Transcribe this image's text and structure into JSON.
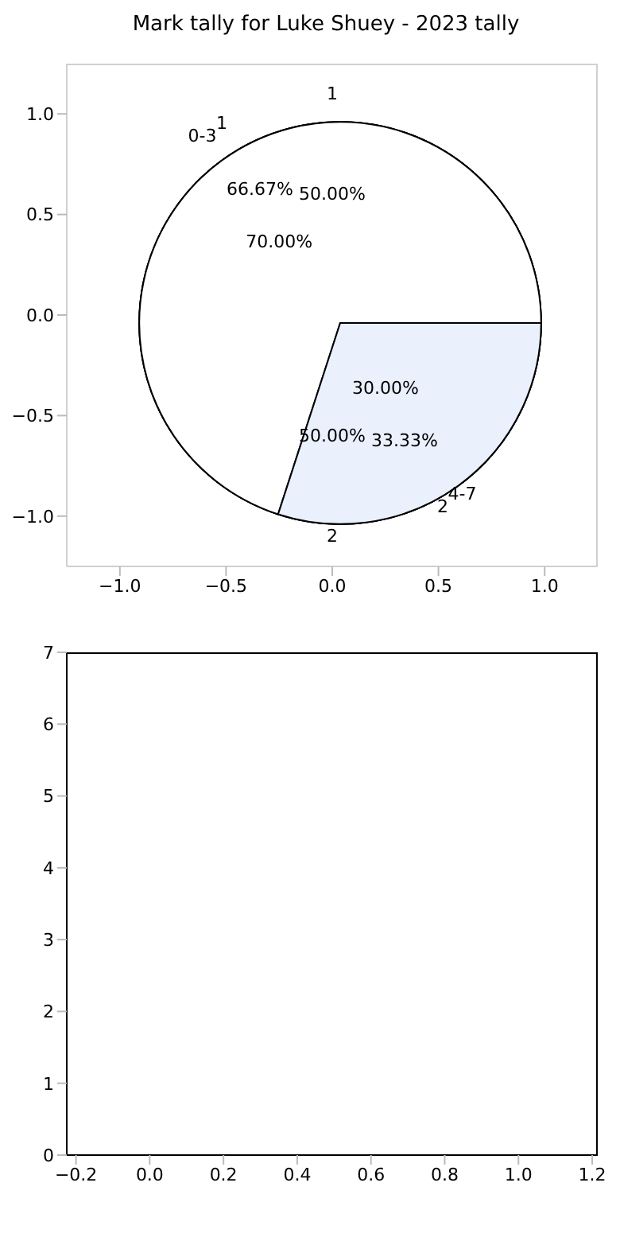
{
  "chart_data": [
    {
      "type": "scatter",
      "title": "Mark tally for Luke Shuey - 2023 tally",
      "xlim": [
        -1.25,
        1.25
      ],
      "ylim": [
        -1.25,
        1.25
      ],
      "xticks": [
        {
          "value": -1,
          "label": "−1.0"
        },
        {
          "value": -0.5,
          "label": "−0.5"
        },
        {
          "value": 0,
          "label": "0.0"
        },
        {
          "value": 0.5,
          "label": "0.5"
        },
        {
          "value": 1,
          "label": "1.0"
        }
      ],
      "yticks": [
        {
          "value": -1,
          "label": "−1.0"
        },
        {
          "value": -0.5,
          "label": "−0.5"
        },
        {
          "value": 0,
          "label": "0.0"
        },
        {
          "value": 0.5,
          "label": "0.5"
        },
        {
          "value": 1,
          "label": "1.0"
        }
      ]
    },
    {
      "type": "pie",
      "categories": [
        "0-3",
        "4-7"
      ],
      "values": [
        70,
        30
      ],
      "value_labels": [
        "70.00%",
        "30.00%"
      ],
      "colors": [
        "#ffffff",
        "#eaf0fc"
      ]
    },
    {
      "type": "pie",
      "categories": [
        "1",
        "2"
      ],
      "values": [
        66.67,
        33.33
      ],
      "value_labels": [
        "66.67%",
        "33.33%"
      ],
      "colors": [
        "#ffffff",
        "#eaf0fc"
      ]
    },
    {
      "type": "pie",
      "categories": [
        "1",
        "2"
      ],
      "values": [
        50,
        50
      ],
      "value_labels": [
        "50.00%",
        "50.00%"
      ],
      "colors": [
        "#ffffff",
        "#eaf0fc"
      ]
    },
    {
      "type": "scatter",
      "xlim": [
        -0.225,
        1.215
      ],
      "ylim": [
        0,
        7
      ],
      "xticks": [
        {
          "value": -0.2,
          "label": "−0.2"
        },
        {
          "value": 0,
          "label": "0.0"
        },
        {
          "value": 0.2,
          "label": "0.2"
        },
        {
          "value": 0.4,
          "label": "0.4"
        },
        {
          "value": 0.6,
          "label": "0.6"
        },
        {
          "value": 0.8,
          "label": "0.8"
        },
        {
          "value": 1,
          "label": "1.0"
        },
        {
          "value": 1.2,
          "label": "1.2"
        }
      ],
      "yticks": [
        0,
        1,
        2,
        3,
        4,
        5,
        6,
        7
      ]
    }
  ]
}
